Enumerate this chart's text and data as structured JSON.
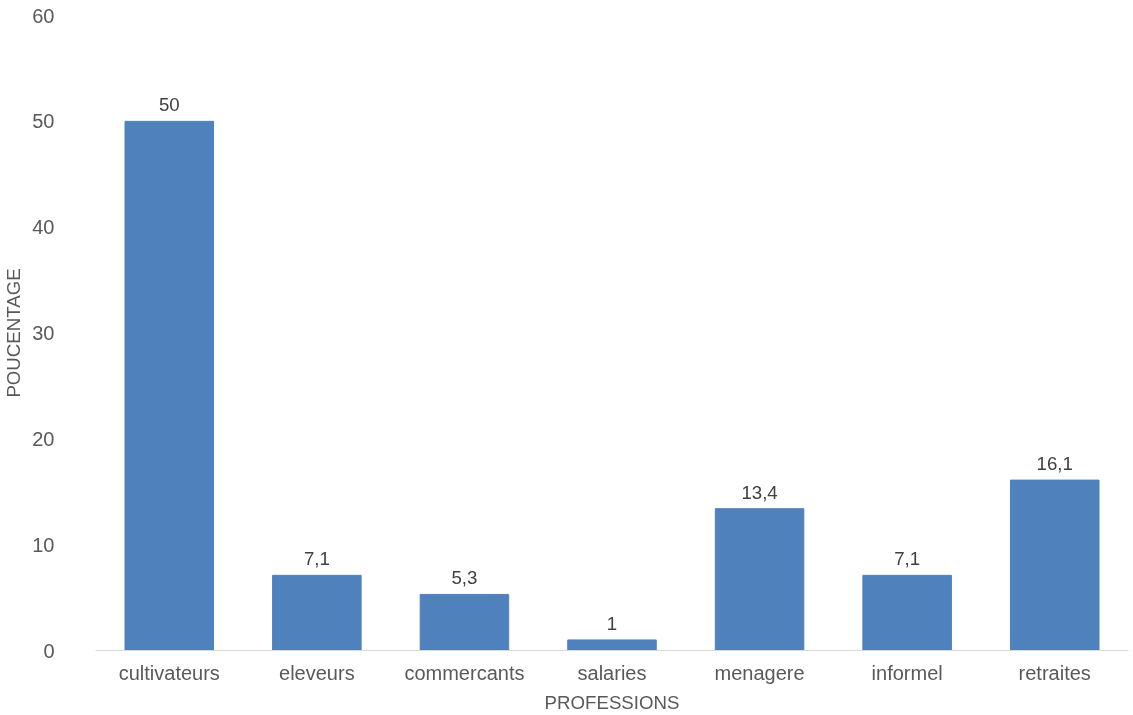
{
  "chart_data": {
    "type": "bar",
    "xlabel": "PROFESSIONS",
    "ylabel": "POUCENTAGE",
    "categories": [
      "cultivateurs",
      "eleveurs",
      "commercants",
      "salaries",
      "menagere",
      "informel",
      "retraites"
    ],
    "values": [
      50,
      7.1,
      5.3,
      1,
      13.4,
      7.1,
      16.1
    ],
    "value_labels": [
      "50",
      "7,1",
      "5,3",
      "1",
      "13,4",
      "7,1",
      "16,1"
    ],
    "color": "#4f81bd",
    "ylim": [
      0,
      60
    ],
    "yticks": [
      0,
      10,
      20,
      30,
      40,
      50,
      60
    ],
    "grid": false
  }
}
